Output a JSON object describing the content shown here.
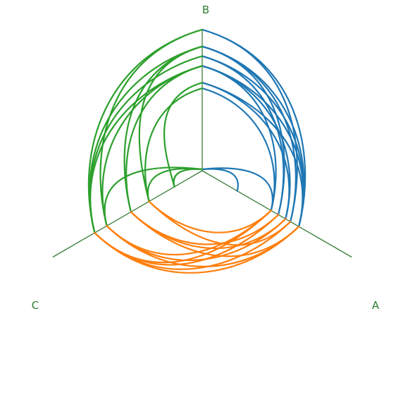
{
  "chart_data": {
    "type": "hive_plot",
    "axes": [
      {
        "name": "A",
        "angle_deg": -30
      },
      {
        "name": "B",
        "angle_deg": 90
      },
      {
        "name": "C",
        "angle_deg": 210
      }
    ],
    "colors": {
      "A_to_B": "#1f77b4",
      "B_to_C": "#2ca02c",
      "C_to_A": "#ff7f0e",
      "axis": "#3a7d3a",
      "label": "#2e7d32"
    },
    "edges": [
      {
        "from_axis": "A",
        "from_pos": 0.28,
        "to_axis": "B",
        "to_pos": 0.0
      },
      {
        "from_axis": "A",
        "from_pos": 0.56,
        "to_axis": "B",
        "to_pos": 0.0
      },
      {
        "from_axis": "A",
        "from_pos": 0.56,
        "to_axis": "B",
        "to_pos": 0.58
      },
      {
        "from_axis": "A",
        "from_pos": 0.56,
        "to_axis": "B",
        "to_pos": 0.74
      },
      {
        "from_axis": "A",
        "from_pos": 0.62,
        "to_axis": "B",
        "to_pos": 0.81
      },
      {
        "from_axis": "A",
        "from_pos": 0.62,
        "to_axis": "B",
        "to_pos": 0.88
      },
      {
        "from_axis": "A",
        "from_pos": 0.68,
        "to_axis": "B",
        "to_pos": 0.62
      },
      {
        "from_axis": "A",
        "from_pos": 0.68,
        "to_axis": "B",
        "to_pos": 0.74
      },
      {
        "from_axis": "A",
        "from_pos": 0.72,
        "to_axis": "B",
        "to_pos": 0.88
      },
      {
        "from_axis": "A",
        "from_pos": 0.72,
        "to_axis": "B",
        "to_pos": 1.0
      },
      {
        "from_axis": "A",
        "from_pos": 0.79,
        "to_axis": "B",
        "to_pos": 0.74
      },
      {
        "from_axis": "A",
        "from_pos": 0.79,
        "to_axis": "B",
        "to_pos": 0.81
      },
      {
        "from_axis": "A",
        "from_pos": 0.79,
        "to_axis": "B",
        "to_pos": 0.88
      },
      {
        "from_axis": "A",
        "from_pos": 0.79,
        "to_axis": "B",
        "to_pos": 1.0
      },
      {
        "from_axis": "A",
        "from_pos": 0.79,
        "to_axis": "B",
        "to_pos": 0.62
      },
      {
        "from_axis": "B",
        "from_pos": 0.0,
        "to_axis": "C",
        "to_pos": 0.22
      },
      {
        "from_axis": "B",
        "from_pos": 0.0,
        "to_axis": "C",
        "to_pos": 0.43
      },
      {
        "from_axis": "B",
        "from_pos": 0.0,
        "to_axis": "C",
        "to_pos": 0.78
      },
      {
        "from_axis": "B",
        "from_pos": 0.58,
        "to_axis": "C",
        "to_pos": 0.43
      },
      {
        "from_axis": "B",
        "from_pos": 0.62,
        "to_axis": "C",
        "to_pos": 0.22
      },
      {
        "from_axis": "B",
        "from_pos": 0.74,
        "to_axis": "C",
        "to_pos": 0.58
      },
      {
        "from_axis": "B",
        "from_pos": 0.74,
        "to_axis": "C",
        "to_pos": 0.78
      },
      {
        "from_axis": "B",
        "from_pos": 0.74,
        "to_axis": "C",
        "to_pos": 0.88
      },
      {
        "from_axis": "B",
        "from_pos": 0.81,
        "to_axis": "C",
        "to_pos": 0.88
      },
      {
        "from_axis": "B",
        "from_pos": 0.88,
        "to_axis": "C",
        "to_pos": 0.88
      },
      {
        "from_axis": "B",
        "from_pos": 0.88,
        "to_axis": "C",
        "to_pos": 0.58
      },
      {
        "from_axis": "B",
        "from_pos": 1.0,
        "to_axis": "C",
        "to_pos": 0.88
      },
      {
        "from_axis": "B",
        "from_pos": 1.0,
        "to_axis": "C",
        "to_pos": 0.78
      },
      {
        "from_axis": "B",
        "from_pos": 0.88,
        "to_axis": "C",
        "to_pos": 0.43
      },
      {
        "from_axis": "C",
        "from_pos": 0.43,
        "to_axis": "A",
        "to_pos": 0.56
      },
      {
        "from_axis": "C",
        "from_pos": 0.43,
        "to_axis": "A",
        "to_pos": 0.72
      },
      {
        "from_axis": "C",
        "from_pos": 0.58,
        "to_axis": "A",
        "to_pos": 0.62
      },
      {
        "from_axis": "C",
        "from_pos": 0.58,
        "to_axis": "A",
        "to_pos": 0.79
      },
      {
        "from_axis": "C",
        "from_pos": 0.78,
        "to_axis": "A",
        "to_pos": 0.68
      },
      {
        "from_axis": "C",
        "from_pos": 0.78,
        "to_axis": "A",
        "to_pos": 0.79
      },
      {
        "from_axis": "C",
        "from_pos": 0.88,
        "to_axis": "A",
        "to_pos": 0.72
      },
      {
        "from_axis": "C",
        "from_pos": 0.88,
        "to_axis": "A",
        "to_pos": 0.79
      },
      {
        "from_axis": "C",
        "from_pos": 0.88,
        "to_axis": "A",
        "to_pos": 0.62
      },
      {
        "from_axis": "C",
        "from_pos": 0.78,
        "to_axis": "A",
        "to_pos": 0.56
      },
      {
        "from_axis": "C",
        "from_pos": 0.58,
        "to_axis": "A",
        "to_pos": 0.68
      },
      {
        "from_axis": "C",
        "from_pos": 0.88,
        "to_axis": "A",
        "to_pos": 0.56
      }
    ]
  }
}
